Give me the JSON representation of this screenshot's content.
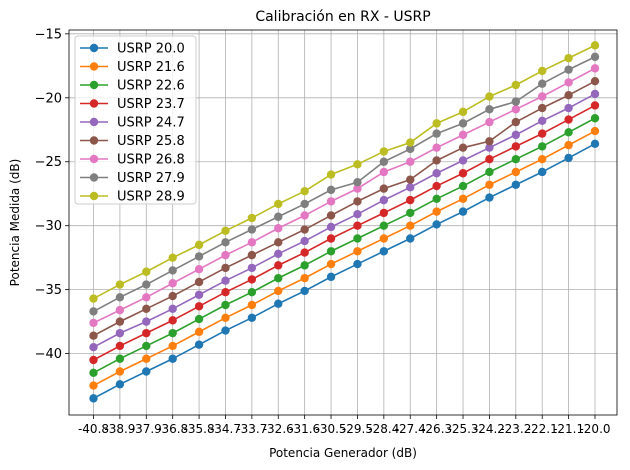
{
  "chart_data": {
    "type": "line",
    "title": "Calibración en RX - USRP",
    "xlabel": "Potencia Generador (dB)",
    "ylabel": "Potencia Medida (dB)",
    "categories": [
      "-40.8",
      "-38.9",
      "-37.9",
      "-36.8",
      "-35.8",
      "-34.7",
      "-33.7",
      "-32.6",
      "-31.6",
      "-30.5",
      "-29.5",
      "-28.4",
      "-27.4",
      "-26.3",
      "-25.3",
      "-24.2",
      "-23.2",
      "-22.1",
      "-21.1",
      "-20.0"
    ],
    "ylim": [
      -44.8,
      -14.7
    ],
    "yticks": [
      -40,
      -35,
      -30,
      -25,
      -20,
      -15
    ],
    "ytick_labels": [
      "−40",
      "−35",
      "−30",
      "−25",
      "−20",
      "−15"
    ],
    "grid": true,
    "legend_position": "upper-left",
    "series": [
      {
        "name": "USRP 20.0",
        "color": "#1f77b4",
        "values": [
          -43.5,
          -42.4,
          -41.4,
          -40.4,
          -39.3,
          -38.2,
          -37.2,
          -36.1,
          -35.1,
          -34.0,
          -33.0,
          -32.0,
          -31.0,
          -29.9,
          -28.9,
          -27.8,
          -26.8,
          -25.8,
          -24.7,
          -23.6
        ]
      },
      {
        "name": "USRP 21.6",
        "color": "#ff7f0e",
        "values": [
          -42.5,
          -41.4,
          -40.4,
          -39.4,
          -38.3,
          -37.2,
          -36.2,
          -35.1,
          -34.1,
          -33.0,
          -32.0,
          -31.0,
          -30.0,
          -28.9,
          -27.9,
          -26.8,
          -25.8,
          -24.8,
          -23.7,
          -22.6
        ]
      },
      {
        "name": "USRP 22.6",
        "color": "#2ca02c",
        "values": [
          -41.5,
          -40.4,
          -39.4,
          -38.4,
          -37.3,
          -36.2,
          -35.2,
          -34.1,
          -33.1,
          -32.0,
          -31.0,
          -30.0,
          -29.0,
          -27.9,
          -26.9,
          -25.8,
          -24.8,
          -23.8,
          -22.7,
          -21.6
        ]
      },
      {
        "name": "USRP 23.7",
        "color": "#d62728",
        "values": [
          -40.5,
          -39.4,
          -38.4,
          -37.4,
          -36.3,
          -35.2,
          -34.2,
          -33.1,
          -32.1,
          -31.0,
          -30.0,
          -29.0,
          -28.0,
          -26.9,
          -25.9,
          -24.8,
          -23.8,
          -22.8,
          -21.7,
          -20.6
        ]
      },
      {
        "name": "USRP 24.7",
        "color": "#9467bd",
        "values": [
          -39.5,
          -38.4,
          -37.5,
          -36.5,
          -35.4,
          -34.3,
          -33.3,
          -32.2,
          -31.2,
          -30.1,
          -29.1,
          -28.0,
          -27.0,
          -25.9,
          -24.9,
          -23.9,
          -22.9,
          -21.8,
          -20.8,
          -19.7
        ]
      },
      {
        "name": "USRP 25.8",
        "color": "#8c564b",
        "values": [
          -38.6,
          -37.5,
          -36.5,
          -35.5,
          -34.4,
          -33.3,
          -32.3,
          -31.3,
          -30.3,
          -29.2,
          -28.1,
          -27.1,
          -26.4,
          -24.9,
          -23.9,
          -23.4,
          -21.9,
          -20.8,
          -19.8,
          -18.7
        ]
      },
      {
        "name": "USRP 26.8",
        "color": "#e377c2",
        "values": [
          -37.6,
          -36.6,
          -35.6,
          -34.5,
          -33.4,
          -32.3,
          -31.3,
          -30.2,
          -29.2,
          -28.1,
          -27.1,
          -25.8,
          -25.0,
          -23.9,
          -22.9,
          -21.9,
          -20.9,
          -19.9,
          -18.8,
          -17.7
        ]
      },
      {
        "name": "USRP 27.9",
        "color": "#7f7f7f",
        "values": [
          -36.7,
          -35.6,
          -34.6,
          -33.5,
          -32.4,
          -31.3,
          -30.3,
          -29.3,
          -28.3,
          -27.2,
          -26.6,
          -25.0,
          -24.0,
          -22.8,
          -22.0,
          -20.9,
          -20.3,
          -18.9,
          -17.8,
          -16.8
        ]
      },
      {
        "name": "USRP 28.9",
        "color": "#bcbd22",
        "values": [
          -35.7,
          -34.6,
          -33.6,
          -32.5,
          -31.5,
          -30.4,
          -29.4,
          -28.3,
          -27.3,
          -26.0,
          -25.2,
          -24.2,
          -23.5,
          -22.0,
          -21.1,
          -19.9,
          -19.0,
          -17.9,
          -16.9,
          -15.9
        ]
      }
    ]
  }
}
